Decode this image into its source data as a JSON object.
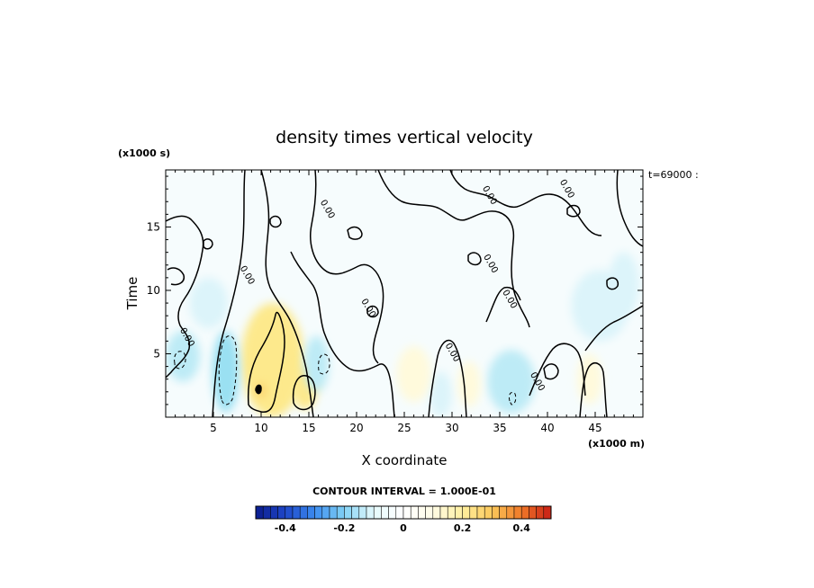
{
  "chart_data": {
    "type": "heatmap",
    "title": "density times vertical velocity",
    "xlabel": "X coordinate",
    "ylabel": "Time",
    "x_units": "(x1000 m)",
    "y_units": "(x1000 s)",
    "corner_note": "t=69000 :",
    "contour_interval_text": "CONTOUR INTERVAL = 1.000E-01",
    "xlim": [
      0,
      50
    ],
    "ylim": [
      0,
      19.5
    ],
    "xticks": [
      5,
      10,
      15,
      20,
      25,
      30,
      35,
      40,
      45
    ],
    "yticks": [
      5,
      10,
      15
    ],
    "grid": false,
    "colorbar": {
      "range": [
        -0.5,
        0.5
      ],
      "tick_values": [
        -0.4,
        -0.2,
        0,
        0.2,
        0.4
      ],
      "tick_labels": [
        "-0.4",
        "-0.2",
        "0",
        "0.2",
        "0.4"
      ],
      "colors": [
        "#0a1c8c",
        "#1e46c8",
        "#3c8cf0",
        "#82d2f5",
        "#e6fafc",
        "#ffffff",
        "#fffbe6",
        "#fff0a0",
        "#fbc85a",
        "#f07828",
        "#c81e14"
      ]
    },
    "contour_labels": [
      {
        "text": "0.00",
        "x": 29.8,
        "y": 5.0
      },
      {
        "text": "0.00",
        "x": 38.7,
        "y": 2.7
      },
      {
        "text": "0.00",
        "x": 35.8,
        "y": 9.2
      },
      {
        "text": "0.00",
        "x": 8.3,
        "y": 11.1
      },
      {
        "text": "0.00",
        "x": 16.7,
        "y": 16.3
      },
      {
        "text": "0.00",
        "x": 33.7,
        "y": 17.4
      },
      {
        "text": "0.00",
        "x": 41.8,
        "y": 17.9
      },
      {
        "text": "0.00",
        "x": 33.8,
        "y": 12.0
      },
      {
        "text": "0.00",
        "x": 2.0,
        "y": 6.2
      },
      {
        "text": "0.00",
        "x": 21.0,
        "y": 8.5
      }
    ],
    "field_features": [
      {
        "sign": "positive",
        "x": 11.2,
        "y": 4.5,
        "rx": 3.3,
        "ry": 4.5,
        "value": 0.22
      },
      {
        "sign": "positive",
        "x": 14.6,
        "y": 2.4,
        "rx": 1.3,
        "ry": 1.8,
        "value": 0.18
      },
      {
        "sign": "positive",
        "x": 10.0,
        "y": 2.1,
        "rx": 0.5,
        "ry": 0.6,
        "value": 0.3
      },
      {
        "sign": "negative",
        "x": 6.3,
        "y": 3.6,
        "rx": 1.4,
        "ry": 3.2,
        "value": -0.15
      },
      {
        "sign": "negative",
        "x": 1.8,
        "y": 4.8,
        "rx": 1.8,
        "ry": 2.0,
        "value": -0.08
      },
      {
        "sign": "negative",
        "x": 15.8,
        "y": 4.2,
        "rx": 1.3,
        "ry": 2.2,
        "value": -0.07
      },
      {
        "sign": "negative",
        "x": 36.2,
        "y": 2.8,
        "rx": 2.5,
        "ry": 2.5,
        "value": -0.07
      },
      {
        "sign": "negative",
        "x": 28.8,
        "y": 1.8,
        "rx": 1.2,
        "ry": 1.8,
        "value": -0.05
      },
      {
        "sign": "positive",
        "x": 26.0,
        "y": 3.4,
        "rx": 1.8,
        "ry": 2.2,
        "value": 0.04
      },
      {
        "sign": "positive",
        "x": 31.8,
        "y": 2.6,
        "rx": 1.2,
        "ry": 1.8,
        "value": 0.05
      },
      {
        "sign": "positive",
        "x": 44.4,
        "y": 3.0,
        "rx": 1.3,
        "ry": 2.0,
        "value": 0.04
      },
      {
        "sign": "negative",
        "x": 45.5,
        "y": 8.8,
        "rx": 3.0,
        "ry": 2.8,
        "value": -0.03
      },
      {
        "sign": "negative",
        "x": 48.0,
        "y": 10.5,
        "rx": 1.6,
        "ry": 2.5,
        "value": -0.04
      },
      {
        "sign": "negative",
        "x": 4.5,
        "y": 9.0,
        "rx": 2.0,
        "ry": 2.0,
        "value": -0.03
      }
    ]
  }
}
